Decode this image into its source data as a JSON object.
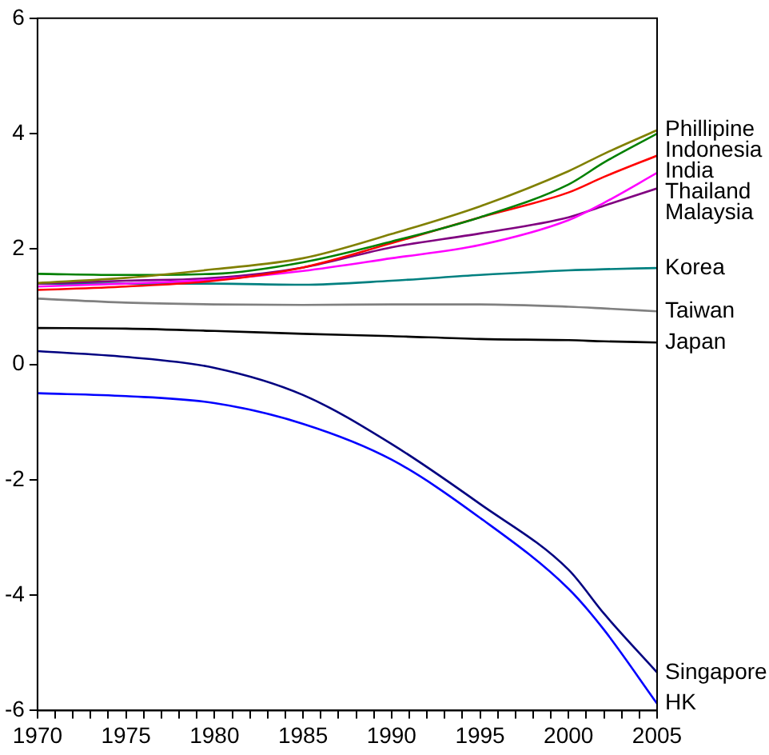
{
  "chart_data": {
    "type": "line",
    "x": [
      1970,
      1975,
      1980,
      1985,
      1990,
      1995,
      2000,
      2002,
      2005
    ],
    "xlim": [
      1970,
      2005
    ],
    "xticks": [
      1970,
      {
        "value": 1971,
        "label": null
      },
      {
        "value": 1972,
        "label": null
      },
      {
        "value": 1973,
        "label": null
      },
      {
        "value": 1974,
        "label": null
      },
      1975,
      {
        "value": 1976,
        "label": null
      },
      {
        "value": 1977,
        "label": null
      },
      {
        "value": 1978,
        "label": null
      },
      {
        "value": 1979,
        "label": null
      },
      1980,
      {
        "value": 1981,
        "label": null
      },
      {
        "value": 1982,
        "label": null
      },
      {
        "value": 1983,
        "label": null
      },
      {
        "value": 1984,
        "label": null
      },
      1985,
      {
        "value": 1986,
        "label": null
      },
      {
        "value": 1987,
        "label": null
      },
      {
        "value": 1988,
        "label": null
      },
      {
        "value": 1989,
        "label": null
      },
      1990,
      {
        "value": 1991,
        "label": null
      },
      {
        "value": 1992,
        "label": null
      },
      {
        "value": 1993,
        "label": null
      },
      {
        "value": 1994,
        "label": null
      },
      1995,
      {
        "value": 1996,
        "label": null
      },
      {
        "value": 1997,
        "label": null
      },
      {
        "value": 1998,
        "label": null
      },
      {
        "value": 1999,
        "label": null
      },
      2000,
      {
        "value": 2001,
        "label": null
      },
      {
        "value": 2002,
        "label": null
      },
      {
        "value": 2003,
        "label": null
      },
      {
        "value": 2004,
        "label": null
      },
      2005
    ],
    "ylim": [
      -6,
      6
    ],
    "yticks": [
      -6,
      -4,
      -2,
      0,
      2,
      4,
      6
    ],
    "grid": false,
    "legend": false,
    "marker": "none",
    "line_style": "solid",
    "series": [
      {
        "name": "Phillipine",
        "color": "#808000",
        "values": [
          1.41,
          1.5,
          1.65,
          1.84,
          2.26,
          2.74,
          3.35,
          3.65,
          4.06
        ]
      },
      {
        "name": "Indonesia",
        "color": "#008000",
        "values": [
          1.57,
          1.55,
          1.57,
          1.77,
          2.13,
          2.55,
          3.12,
          3.5,
          4.0
        ]
      },
      {
        "name": "India",
        "color": "#ff0000",
        "values": [
          1.29,
          1.35,
          1.45,
          1.68,
          2.1,
          2.55,
          2.98,
          3.25,
          3.62
        ]
      },
      {
        "name": "Thailand",
        "color": "#ff00ff",
        "values": [
          1.35,
          1.4,
          1.47,
          1.62,
          1.84,
          2.07,
          2.5,
          2.8,
          3.32
        ]
      },
      {
        "name": "Malaysia",
        "color": "#800080",
        "values": [
          1.4,
          1.45,
          1.5,
          1.68,
          2.03,
          2.27,
          2.55,
          2.75,
          3.05
        ]
      },
      {
        "name": "Korea",
        "color": "#008080",
        "values": [
          1.4,
          1.4,
          1.4,
          1.38,
          1.45,
          1.55,
          1.63,
          1.65,
          1.67
        ]
      },
      {
        "name": "Taiwan",
        "color": "#808080",
        "values": [
          1.14,
          1.07,
          1.04,
          1.03,
          1.04,
          1.04,
          1.0,
          0.97,
          0.92
        ]
      },
      {
        "name": "Japan",
        "color": "#000000",
        "values": [
          0.63,
          0.62,
          0.58,
          0.53,
          0.49,
          0.44,
          0.42,
          0.4,
          0.38
        ]
      },
      {
        "name": "Singapore",
        "color": "#000080",
        "values": [
          0.23,
          0.13,
          -0.06,
          -0.53,
          -1.38,
          -2.42,
          -3.56,
          -4.32,
          -5.34
        ]
      },
      {
        "name": "HK",
        "color": "#0000ff",
        "values": [
          -0.5,
          -0.55,
          -0.67,
          -1.03,
          -1.65,
          -2.66,
          -3.89,
          -4.6,
          -5.88
        ]
      }
    ]
  }
}
